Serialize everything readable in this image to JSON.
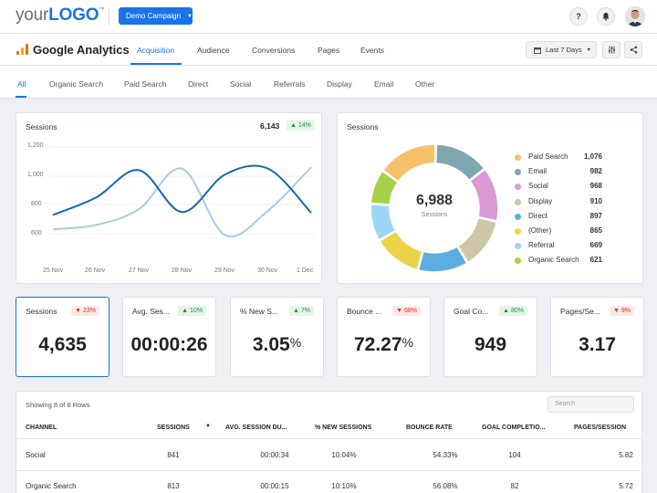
{
  "topbar": {
    "logo_your": "your",
    "logo_logo": "LOGO",
    "logo_tm": "™",
    "campaign_label": "Demo Campaign",
    "help": "?",
    "bell": "🔔"
  },
  "ga": {
    "title": "Google Analytics",
    "tabs": [
      "Acquisition",
      "Audience",
      "Conversions",
      "Pages",
      "Events"
    ],
    "date_range": "Last 7 Days"
  },
  "channels": [
    "All",
    "Organic Search",
    "Paid Search",
    "Direct",
    "Social",
    "Referrals",
    "Display",
    "Email",
    "Other"
  ],
  "line_chart": {
    "title": "Sessions",
    "total": "6,143",
    "change": "14%",
    "chart_data": {
      "type": "line",
      "x": [
        "25 Nov",
        "26 Nov",
        "27 Nov",
        "28 Nov",
        "29 Nov",
        "30 Nov",
        "1 Dec"
      ],
      "yticks": [
        "1,200",
        "1,000",
        "800",
        "600"
      ],
      "ylim": [
        500,
        1200
      ],
      "series": [
        {
          "values": [
            730,
            850,
            1040,
            750,
            1010,
            1050,
            745
          ],
          "color": "#1567b3"
        },
        {
          "values": [
            630,
            660,
            770,
            1050,
            590,
            760,
            1060
          ],
          "color": "#a9cce3"
        }
      ]
    }
  },
  "donut": {
    "title": "Sessions",
    "center_value": "6,988",
    "center_label": "Sessions",
    "chart_data": {
      "type": "pie",
      "labels": [
        "Paid Search",
        "Email",
        "Social",
        "Display",
        "Direct",
        "(Other)",
        "Referral",
        "Organic Search"
      ],
      "values": [
        1076,
        982,
        968,
        910,
        897,
        865,
        669,
        621
      ],
      "value_labels": [
        "1,076",
        "982",
        "968",
        "910",
        "897",
        "865",
        "669",
        "621"
      ],
      "colors": [
        "#f5c26b",
        "#7fa7b0",
        "#d99ad4",
        "#cfc6a8",
        "#5aaee0",
        "#ecd34a",
        "#9fd6f5",
        "#a7d14a"
      ]
    }
  },
  "kpis": [
    {
      "title": "Sessions",
      "value": "4,635",
      "change": "23%",
      "dir": "down"
    },
    {
      "title": "Avg. Ses...",
      "value": "00:00:26",
      "change": "10%",
      "dir": "up"
    },
    {
      "title": "% New S...",
      "value": "3.05",
      "unit": "%",
      "change": "7%",
      "dir": "up"
    },
    {
      "title": "Bounce ...",
      "value": "72.27",
      "unit": "%",
      "change": "68%",
      "dir": "down"
    },
    {
      "title": "Goal Co...",
      "value": "949",
      "change": "80%",
      "dir": "up"
    },
    {
      "title": "Pages/Se...",
      "value": "3.17",
      "change": "9%",
      "dir": "down"
    }
  ],
  "table": {
    "rows_info": "Showing 8 of 8 Rows",
    "search_placeholder": "Search",
    "headers": [
      "CHANNEL",
      "SESSIONS",
      "AVG. SESSION DU...",
      "% NEW SESSIONS",
      "BOUNCE RATE",
      "GOAL COMPLETIO...",
      "PAGES/SESSION"
    ],
    "rows": [
      [
        "Social",
        "841",
        "00:00:34",
        "10.04%",
        "54.33%",
        "104",
        "5.82"
      ],
      [
        "Organic Search",
        "813",
        "00:00:15",
        "10.10%",
        "56.08%",
        "82",
        "5.72"
      ]
    ]
  }
}
